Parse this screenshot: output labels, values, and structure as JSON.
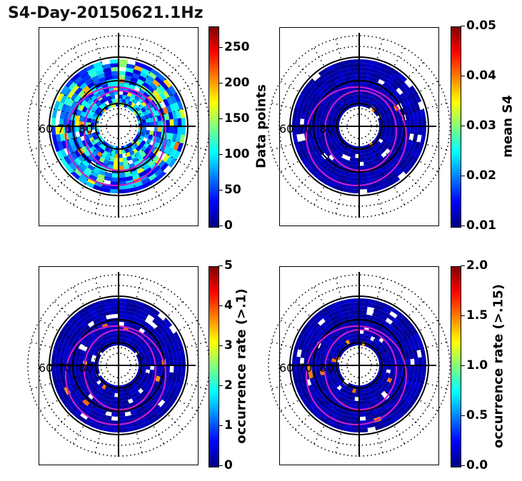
{
  "figure_title": "S4-Day-20150621.1Hz",
  "chart_data": [
    {
      "type": "heatmap",
      "projection": "polar",
      "position": "top-left",
      "colorbar_label": "Data points",
      "colorbar_ticks": [
        "0",
        "50",
        "100",
        "150",
        "200",
        "250"
      ],
      "clim": [
        0,
        280
      ],
      "colormap": "jet",
      "latitude_labels": [
        "60",
        "70",
        "80"
      ]
    },
    {
      "type": "heatmap",
      "projection": "polar",
      "position": "top-right",
      "colorbar_label": "mean S4",
      "colorbar_ticks": [
        "0.01",
        "0.02",
        "0.03",
        "0.04",
        "0.05"
      ],
      "clim": [
        0.01,
        0.05
      ],
      "colormap": "jet",
      "latitude_labels": [
        "60",
        "70",
        "80"
      ]
    },
    {
      "type": "heatmap",
      "projection": "polar",
      "position": "bottom-left",
      "colorbar_label": "occurrence rate (>.1)",
      "colorbar_ticks": [
        "0",
        "1",
        "2",
        "3",
        "4",
        "5"
      ],
      "clim": [
        0,
        5
      ],
      "colormap": "jet",
      "latitude_labels": [
        "60",
        "70",
        "80"
      ]
    },
    {
      "type": "heatmap",
      "projection": "polar",
      "position": "bottom-right",
      "colorbar_label": "occurrence rate (>.15)",
      "colorbar_ticks": [
        "0.0",
        "0.5",
        "1.0",
        "1.5",
        "2.0"
      ],
      "clim": [
        0,
        2
      ],
      "colormap": "jet",
      "latitude_labels": [
        "60",
        "70",
        "80"
      ]
    }
  ]
}
